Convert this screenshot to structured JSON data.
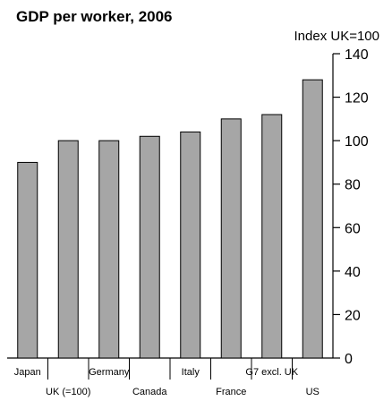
{
  "chart_data": {
    "type": "bar",
    "title": "GDP per worker, 2006",
    "ylabel": "Index UK=100",
    "xlabel": "",
    "categories": [
      "Japan",
      "UK (=100)",
      "Germany",
      "Canada",
      "Italy",
      "France",
      "G7 excl. UK",
      "US"
    ],
    "values": [
      90,
      100,
      100,
      102,
      104,
      110,
      112,
      128
    ],
    "ylim": [
      0,
      140
    ],
    "yticks": [
      0,
      20,
      40,
      60,
      80,
      100,
      120,
      140
    ],
    "y_axis_position": "right",
    "grid": false,
    "bar_color": "#a6a6a6",
    "edge_color": "#000000"
  }
}
